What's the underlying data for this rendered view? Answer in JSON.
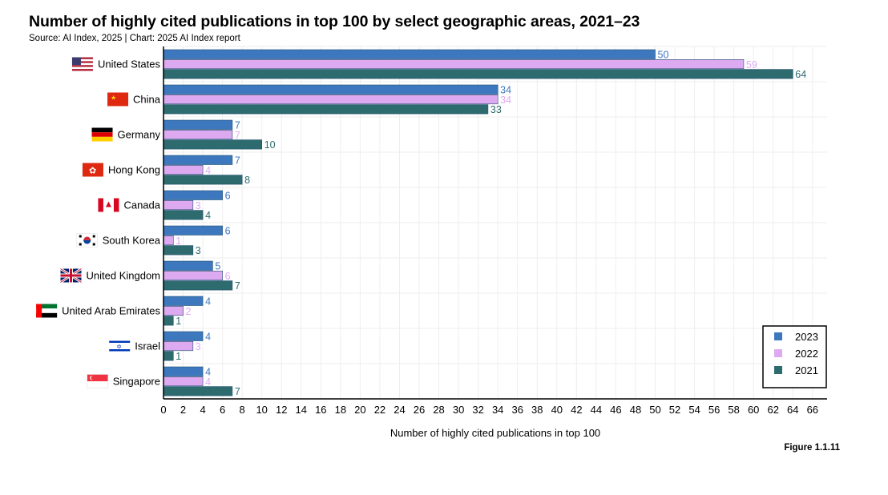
{
  "title": "Number of highly cited publications in top 100 by select geographic areas, 2021–23",
  "source": "Source: AI Index, 2025 | Chart: 2025 AI Index report",
  "figure": "Figure 1.1.11",
  "colors": {
    "2023": "#3d78bf",
    "2022": "#ddaaf2",
    "2021": "#2e6b6e",
    "axis": "#000000",
    "grid": "#eeeeee"
  },
  "icons": [
    "flag-us-icon",
    "flag-cn-icon",
    "flag-de-icon",
    "flag-hk-icon",
    "flag-ca-icon",
    "flag-kr-icon",
    "flag-uk-icon",
    "flag-ae-icon",
    "flag-il-icon",
    "flag-sg-icon"
  ],
  "chart_data": {
    "type": "bar",
    "orientation": "horizontal",
    "title": "Number of highly cited publications in top 100 by select geographic areas, 2021–23",
    "xlabel": "Number of highly cited publications in top 100",
    "ylabel": "",
    "xlim": [
      0,
      67
    ],
    "xticks": [
      0,
      2,
      4,
      6,
      8,
      10,
      12,
      14,
      16,
      18,
      20,
      22,
      24,
      26,
      28,
      30,
      32,
      34,
      36,
      38,
      40,
      42,
      44,
      46,
      48,
      50,
      52,
      54,
      56,
      58,
      60,
      62,
      64,
      66
    ],
    "grid": true,
    "legend_position": "bottom-right",
    "categories": [
      "United States",
      "China",
      "Germany",
      "Hong Kong",
      "Canada",
      "South Korea",
      "United Kingdom",
      "United Arab Emirates",
      "Israel",
      "Singapore"
    ],
    "series": [
      {
        "name": "2023",
        "values": [
          50,
          34,
          7,
          7,
          6,
          6,
          5,
          4,
          4,
          4
        ]
      },
      {
        "name": "2022",
        "values": [
          59,
          34,
          7,
          4,
          3,
          1,
          6,
          2,
          3,
          4
        ]
      },
      {
        "name": "2021",
        "values": [
          64,
          33,
          10,
          8,
          4,
          3,
          7,
          1,
          1,
          7
        ]
      }
    ]
  }
}
